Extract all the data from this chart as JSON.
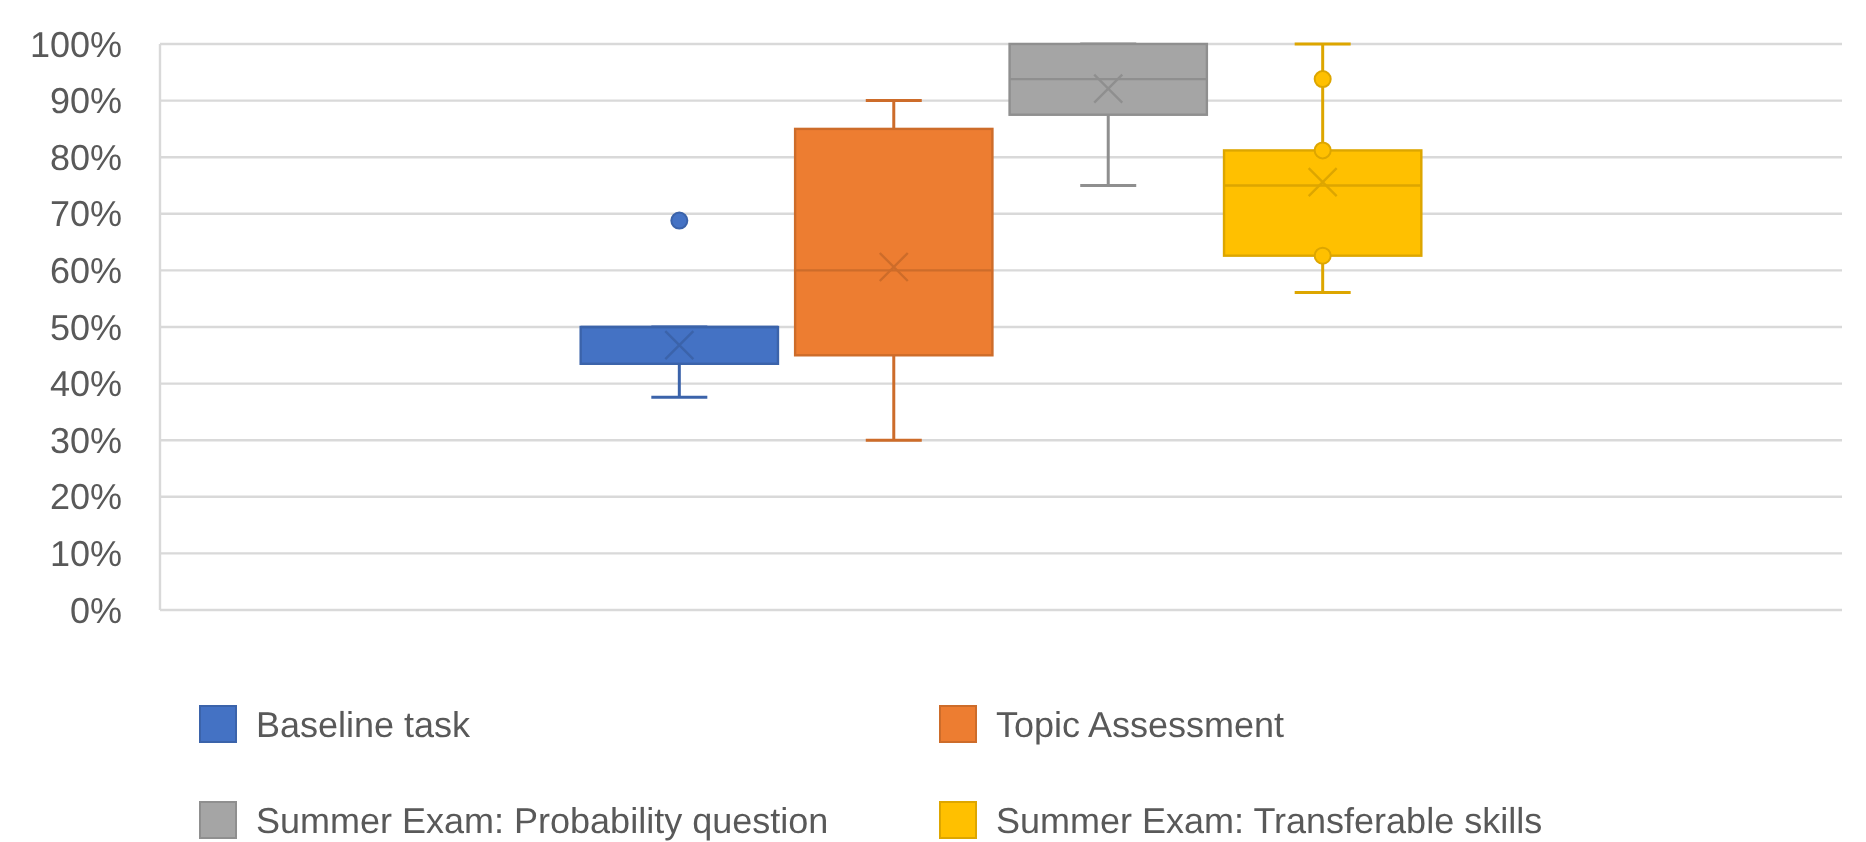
{
  "chart_data": {
    "type": "box",
    "categories": [
      null
    ],
    "ylim": [
      0,
      100
    ],
    "yticks": [
      {
        "value": 0,
        "label": "0%"
      },
      {
        "value": 10,
        "label": "10%"
      },
      {
        "value": 20,
        "label": "20%"
      },
      {
        "value": 30,
        "label": "30%"
      },
      {
        "value": 40,
        "label": "40%"
      },
      {
        "value": 50,
        "label": "50%"
      },
      {
        "value": 60,
        "label": "60%"
      },
      {
        "value": 70,
        "label": "70%"
      },
      {
        "value": 80,
        "label": "80%"
      },
      {
        "value": 90,
        "label": "90%"
      },
      {
        "value": 100,
        "label": "100%"
      }
    ],
    "grid": "y",
    "legend": "bottom",
    "series": [
      {
        "name": "Baseline task",
        "color": "#4472c4",
        "boxes": [
          {
            "low": 37.6,
            "q1": 43.5,
            "median": 50,
            "q3": 50,
            "high": 50,
            "mean": 46.8,
            "outliers": [
              68.8
            ]
          }
        ]
      },
      {
        "name": "Topic Assessment",
        "color": "#ed7d31",
        "boxes": [
          {
            "low": 30,
            "q1": 45,
            "median": 60,
            "q3": 85,
            "high": 90,
            "mean": 60.6
          }
        ]
      },
      {
        "name": "Summer Exam: Probability question",
        "color": "#a5a5a5",
        "boxes": [
          {
            "low": 75,
            "q1": 87.5,
            "median": 93.8,
            "q3": 100,
            "high": 100,
            "mean": 92.1
          }
        ]
      },
      {
        "name": "Summer Exam: Transferable skills",
        "color": "#ffc000",
        "boxes": [
          {
            "low": 56.1,
            "q1": 62.6,
            "median": 75,
            "q3": 81.2,
            "high": 100,
            "mean": 75.6,
            "outliers": [
              93.8,
              81.2,
              62.6
            ]
          }
        ]
      }
    ]
  }
}
